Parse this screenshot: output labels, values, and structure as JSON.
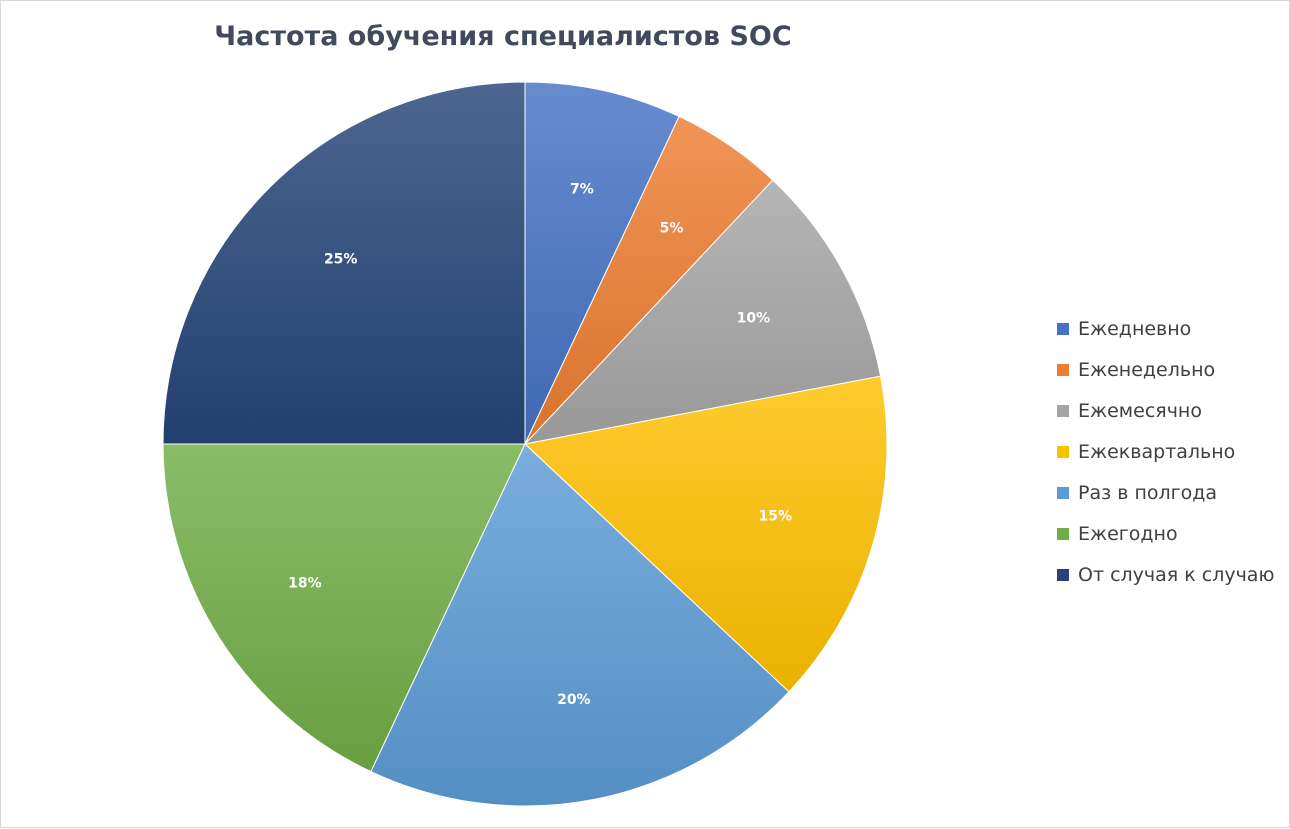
{
  "chart_data": {
    "type": "pie",
    "title": "Частота обучения специалистов SOC",
    "categories": [
      "Ежедневно",
      "Еженедельно",
      "Ежемесячно",
      "Ежеквартально",
      "Раз в полгода",
      "Ежегодно",
      "От случая к случаю"
    ],
    "values": [
      7,
      5,
      10,
      15,
      20,
      18,
      25
    ],
    "data_labels": [
      "7%",
      "5%",
      "10%",
      "15%",
      "20%",
      "18%",
      "25%"
    ],
    "colors": [
      "#4472C4",
      "#ED7D31",
      "#A5A5A5",
      "#FFC000",
      "#5B9BD5",
      "#70AD47",
      "#264478"
    ],
    "legend_position": "right",
    "start_angle": "top (12 o'clock), clockwise"
  }
}
